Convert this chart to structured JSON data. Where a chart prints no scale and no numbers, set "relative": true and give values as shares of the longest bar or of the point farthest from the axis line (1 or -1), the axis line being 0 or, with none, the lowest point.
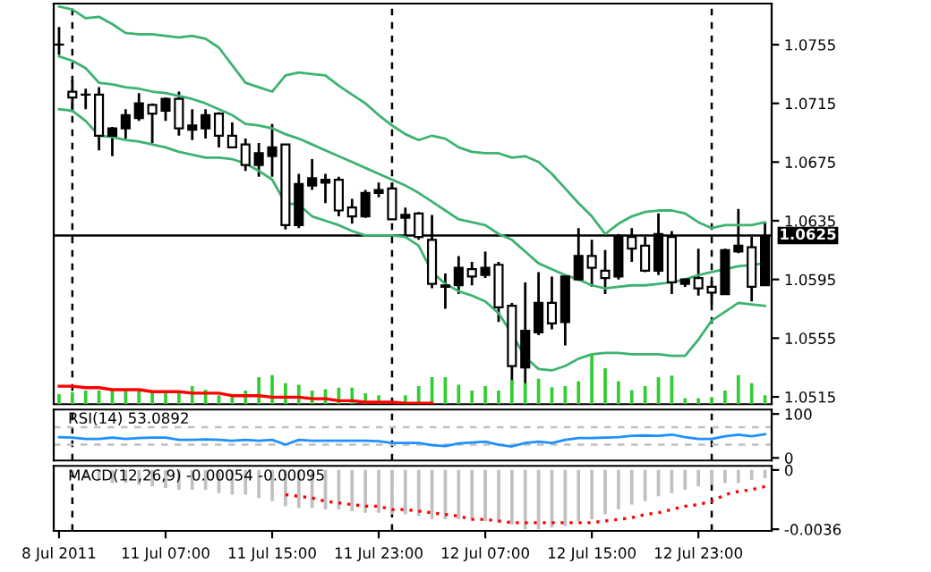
{
  "chart_data": [
    {
      "type": "candlestick",
      "categories": [
        null,
        null,
        null,
        null,
        null,
        null,
        null,
        null,
        null,
        null,
        null,
        null,
        null,
        null,
        null,
        null,
        null,
        null,
        null,
        null,
        null,
        null,
        null,
        null,
        null,
        null,
        null,
        null,
        null,
        null,
        null,
        null,
        null,
        null,
        null,
        null,
        null,
        null,
        null,
        null,
        null,
        null,
        null,
        null,
        null,
        null,
        null,
        null,
        null,
        null,
        null,
        null,
        null,
        null
      ],
      "ohlc": [
        [
          1.0755,
          1.0767,
          1.0748,
          1.0755
        ],
        [
          1.0719,
          1.0731,
          1.0709,
          1.0723
        ],
        [
          1.0721,
          1.0725,
          1.0711,
          1.0721
        ],
        [
          1.0693,
          1.0726,
          1.0683,
          1.0721
        ],
        [
          1.0698,
          1.0699,
          1.0679,
          1.0693
        ],
        [
          1.0707,
          1.0711,
          1.0691,
          1.0698
        ],
        [
          1.0715,
          1.0722,
          1.0703,
          1.0705
        ],
        [
          1.0708,
          1.0715,
          1.0688,
          1.0714
        ],
        [
          1.0718,
          1.0719,
          1.0703,
          1.071
        ],
        [
          1.0698,
          1.0723,
          1.0693,
          1.0718
        ],
        [
          1.07,
          1.0711,
          1.069,
          1.0697
        ],
        [
          1.0707,
          1.0711,
          1.0691,
          1.0698
        ],
        [
          1.0693,
          1.0709,
          1.0685,
          1.0708
        ],
        [
          1.0685,
          1.0702,
          1.0685,
          1.0693
        ],
        [
          1.0673,
          1.0691,
          1.0669,
          1.0687
        ],
        [
          1.0681,
          1.0688,
          1.0665,
          1.0673
        ],
        [
          1.0685,
          1.0701,
          1.0665,
          1.0679
        ],
        [
          1.0632,
          1.0687,
          1.0629,
          1.0687
        ],
        [
          1.066,
          1.0667,
          1.063,
          1.0632
        ],
        [
          1.0664,
          1.0677,
          1.0656,
          1.0659
        ],
        [
          1.0663,
          1.0667,
          1.0647,
          1.0661
        ],
        [
          1.0642,
          1.0665,
          1.0638,
          1.0663
        ],
        [
          1.0638,
          1.065,
          1.0633,
          1.0644
        ],
        [
          1.0654,
          1.0656,
          1.0637,
          1.0638
        ],
        [
          1.0656,
          1.0661,
          1.0651,
          1.0654
        ],
        [
          1.0636,
          1.0661,
          1.0636,
          1.0657
        ],
        [
          1.0639,
          1.0644,
          1.0624,
          1.0637
        ],
        [
          1.0624,
          1.0641,
          1.0622,
          1.064
        ],
        [
          1.0592,
          1.0639,
          1.0589,
          1.0622
        ],
        [
          1.0591,
          1.0599,
          1.0575,
          1.059
        ],
        [
          1.0603,
          1.0611,
          1.0585,
          1.0591
        ],
        [
          1.0597,
          1.0607,
          1.0591,
          1.0602
        ],
        [
          1.0603,
          1.0614,
          1.0596,
          1.0598
        ],
        [
          1.0576,
          1.0607,
          1.0566,
          1.0605
        ],
        [
          1.0536,
          1.0579,
          1.0524,
          1.0577
        ],
        [
          1.056,
          1.0593,
          1.0523,
          1.0535
        ],
        [
          1.0579,
          1.06,
          1.0557,
          1.0559
        ],
        [
          1.0565,
          1.0597,
          1.0561,
          1.0579
        ],
        [
          1.0597,
          1.0598,
          1.055,
          1.0566
        ],
        [
          1.0611,
          1.063,
          1.0594,
          1.0595
        ],
        [
          1.0603,
          1.0622,
          1.059,
          1.0611
        ],
        [
          1.0596,
          1.0615,
          1.0585,
          1.0601
        ],
        [
          1.0624,
          1.0626,
          1.0595,
          1.0597
        ],
        [
          1.0616,
          1.063,
          1.0607,
          1.0624
        ],
        [
          1.0601,
          1.0624,
          1.06,
          1.0618
        ],
        [
          1.0626,
          1.064,
          1.0598,
          1.0601
        ],
        [
          1.0593,
          1.0628,
          1.0585,
          1.0624
        ],
        [
          1.0595,
          1.0596,
          1.059,
          1.0592
        ],
        [
          1.0589,
          1.0616,
          1.0584,
          1.0596
        ],
        [
          1.0586,
          1.0594,
          1.0578,
          1.059
        ],
        [
          1.0615,
          1.0616,
          1.0585,
          1.0585
        ],
        [
          1.0618,
          1.0643,
          1.0613,
          1.0614
        ],
        [
          1.059,
          1.0624,
          1.058,
          1.0617
        ],
        [
          1.0624,
          1.0634,
          1.0591,
          1.0591
        ]
      ],
      "series": [
        {
          "type": "line",
          "color": "#3cb371",
          "values": [
            1.0781,
            1.0779,
            1.0773,
            1.0774,
            1.0769,
            1.0763,
            1.0762,
            1.0762,
            1.0761,
            1.076,
            1.0761,
            1.0759,
            1.0753,
            1.0741,
            1.0729,
            1.0726,
            1.0723,
            1.0734,
            1.0736,
            1.0735,
            1.0734,
            1.0727,
            1.0721,
            1.0715,
            1.0707,
            1.07,
            1.0694,
            1.069,
            1.0693,
            1.0691,
            1.0685,
            1.0682,
            1.0681,
            1.0681,
            1.0678,
            1.0679,
            1.0675,
            1.0667,
            1.0657,
            1.0647,
            1.0638,
            1.0626,
            1.0633,
            1.0638,
            1.0641,
            1.0642,
            1.0642,
            1.064,
            1.0634,
            1.063,
            1.0632,
            1.0632,
            1.0632,
            1.0634
          ]
        },
        {
          "type": "line",
          "color": "#3cb371",
          "values": [
            1.0747,
            1.0744,
            1.0739,
            1.0729,
            1.0728,
            1.0726,
            1.0725,
            1.0723,
            1.0722,
            1.072,
            1.0718,
            1.0715,
            1.0711,
            1.0707,
            1.0701,
            1.07,
            1.0698,
            1.0694,
            1.0691,
            1.0687,
            1.0683,
            1.0679,
            1.0675,
            1.0671,
            1.0667,
            1.0663,
            1.0659,
            1.0654,
            1.0648,
            1.0642,
            1.0636,
            1.0634,
            1.0632,
            1.0626,
            1.0622,
            1.0614,
            1.0606,
            1.0602,
            1.0598,
            1.0595,
            1.0591,
            1.0589,
            1.059,
            1.0591,
            1.0591,
            1.0592,
            1.0593,
            1.0595,
            1.0598,
            1.06,
            1.0602,
            1.0604,
            1.0605,
            1.0606
          ]
        },
        {
          "type": "line",
          "color": "#3cb371",
          "values": [
            1.0711,
            1.071,
            1.0703,
            1.0693,
            1.0692,
            1.069,
            1.0689,
            1.0687,
            1.0685,
            1.0682,
            1.068,
            1.0678,
            1.0678,
            1.0677,
            1.0674,
            1.0669,
            1.0663,
            1.0647,
            1.0646,
            1.0638,
            1.0635,
            1.0632,
            1.0628,
            1.0625,
            1.0625,
            1.0625,
            1.0624,
            1.0618,
            1.06,
            1.0592,
            1.0587,
            1.0584,
            1.058,
            1.0572,
            1.0558,
            1.0542,
            1.0534,
            1.0533,
            1.0536,
            1.0541,
            1.0544,
            1.0545,
            1.0545,
            1.0544,
            1.0544,
            1.0544,
            1.0543,
            1.0543,
            1.0554,
            1.0567,
            1.0573,
            1.0579,
            1.0578,
            1.0577
          ]
        }
      ],
      "ylim": [
        1.051,
        1.0783
      ],
      "yticks": [
        1.0755,
        1.0715,
        1.0675,
        1.0635,
        1.0595,
        1.0555,
        1.0515
      ],
      "tick_labels": "y",
      "grid": "x",
      "ref_lines": [
        {
          "axis": "y",
          "value": 1.0625,
          "label": "1.0625",
          "color": "#000000",
          "line_style": "solid"
        }
      ]
    },
    {
      "type": "bar",
      "relative": true,
      "categories": [
        null,
        null,
        null,
        null,
        null,
        null,
        null,
        null,
        null,
        null,
        null,
        null,
        null,
        null,
        null,
        null,
        null,
        null,
        null,
        null,
        null,
        null,
        null,
        null,
        null,
        null,
        null,
        null,
        null,
        null,
        null,
        null,
        null,
        null,
        null,
        null,
        null,
        null,
        null,
        null,
        null,
        null,
        null,
        null,
        null,
        null,
        null,
        null,
        null,
        null,
        null,
        null,
        null,
        null
      ],
      "series": [
        {
          "color": "#32cd32",
          "values": [
            0.2,
            0.24,
            0.27,
            0.27,
            0.27,
            0.27,
            0.27,
            0.24,
            0.24,
            0.24,
            0.36,
            0.29,
            0.18,
            0.18,
            0.27,
            0.54,
            0.58,
            0.42,
            0.39,
            0.27,
            0.3,
            0.33,
            0.33,
            0.22,
            0.18,
            null,
            0.18,
            0.36,
            0.54,
            0.54,
            0.39,
            0.27,
            0.36,
            0.27,
            0.48,
            0.42,
            0.51,
            0.34,
            0.36,
            0.46,
            1,
            0.72,
            0.46,
            0.28,
            0.36,
            0.54,
            0.57,
            0.12,
            0.12,
            0.14,
            0.27,
            0.58,
            0.42,
            0.18
          ]
        },
        {
          "type": "line",
          "color": "#ff0000",
          "values": [
            0.36,
            0.36,
            0.33,
            0.33,
            0.29,
            0.29,
            0.29,
            0.25,
            0.25,
            0.25,
            0.22,
            0.22,
            0.22,
            0.17,
            0.17,
            0.17,
            0.14,
            0.14,
            0.14,
            0.11,
            0.11,
            0.07,
            0.07,
            0.04,
            0.04,
            0.04,
            0.02,
            0.02,
            0.02,
            null,
            null,
            null,
            null,
            null,
            null,
            null,
            null,
            null,
            null,
            null,
            null,
            null,
            null,
            null,
            null,
            null,
            null,
            null,
            null,
            null,
            null,
            null,
            null,
            null
          ]
        }
      ]
    },
    {
      "type": "line",
      "title": "RSI(14) 53.0892",
      "categories": [
        null,
        null,
        null,
        null,
        null,
        null,
        null,
        null,
        null,
        null,
        null,
        null,
        null,
        null,
        null,
        null,
        null,
        null,
        null,
        null,
        null,
        null,
        null,
        null,
        null,
        null,
        null,
        null,
        null,
        null,
        null,
        null,
        null,
        null,
        null,
        null,
        null,
        null,
        null,
        null,
        null,
        null,
        null,
        null,
        null,
        null,
        null,
        null,
        null,
        null,
        null,
        null,
        null,
        null
      ],
      "series": [
        {
          "color": "#1e90ff",
          "values": [
            47,
            46,
            43,
            43,
            46,
            43,
            45,
            46,
            46,
            41,
            41,
            42,
            41,
            39,
            41,
            39,
            41,
            30,
            41,
            39,
            39,
            39,
            39,
            39,
            38,
            34,
            34,
            34,
            29,
            27,
            33,
            35,
            37,
            30,
            26,
            34,
            37,
            34,
            41,
            45,
            45,
            46,
            47,
            50,
            51,
            50,
            53,
            47,
            43,
            43,
            49,
            53,
            49,
            54
          ]
        }
      ],
      "ylim": [
        -6,
        110
      ],
      "yticks": [
        100,
        0
      ],
      "tick_labels": "y",
      "grid": "x",
      "ref_lines": [
        {
          "axis": "y",
          "value": 70,
          "color": "#c0c0c0",
          "line_style": "dashed"
        },
        {
          "axis": "y",
          "value": 30,
          "color": "#c0c0c0",
          "line_style": "dashed"
        }
      ]
    },
    {
      "type": "bar",
      "title": "MACD(12,26,9) -0.00054 -0.00095",
      "categories": [
        "8 Jul 2011",
        null,
        null,
        null,
        null,
        null,
        null,
        null,
        "11 Jul 07:00",
        null,
        null,
        null,
        null,
        null,
        null,
        null,
        "11 Jul 15:00",
        null,
        null,
        null,
        null,
        null,
        null,
        null,
        "11 Jul 23:00",
        null,
        null,
        null,
        null,
        null,
        null,
        null,
        "12 Jul 07:00",
        null,
        null,
        null,
        null,
        null,
        null,
        null,
        "12 Jul 15:00",
        null,
        null,
        null,
        null,
        null,
        null,
        null,
        "12 Jul 23:00",
        null,
        null,
        null,
        null,
        null
      ],
      "series": [
        {
          "color": "#c0c0c0",
          "values": [
            null,
            -0.0003,
            -0.0005,
            -0.0006,
            -0.0008,
            -0.0008,
            -0.0009,
            -0.001,
            -0.0011,
            -0.0012,
            -0.0012,
            -0.0012,
            -0.0014,
            -0.0015,
            -0.0015,
            -0.0017,
            -0.0019,
            -0.0022,
            -0.0023,
            -0.0023,
            -0.0024,
            -0.0024,
            -0.0025,
            -0.0026,
            -0.0026,
            -0.0027,
            -0.0027,
            -0.0028,
            -0.003,
            -0.003,
            -0.003,
            -0.003,
            -0.0031,
            -0.0032,
            -0.0033,
            -0.0036,
            -0.0036,
            -0.0035,
            -0.0034,
            -0.0031,
            -0.003,
            -0.0027,
            -0.0024,
            -0.0021,
            -0.0019,
            -0.0016,
            -0.0014,
            -0.0012,
            -0.001,
            -0.0009,
            -0.0008,
            -0.0008,
            -0.0006,
            -0.0005
          ]
        },
        {
          "type": "line",
          "line_style": "dotted",
          "color": "#ff0000",
          "values": [
            null,
            null,
            null,
            null,
            null,
            null,
            null,
            null,
            null,
            null,
            null,
            null,
            null,
            null,
            null,
            null,
            null,
            -0.0015,
            -0.0016,
            -0.0017,
            -0.0019,
            -0.002,
            -0.0021,
            -0.0022,
            -0.0022,
            -0.0024,
            -0.0024,
            -0.0025,
            -0.0026,
            -0.0027,
            -0.0028,
            -0.003,
            -0.003,
            -0.0031,
            -0.0032,
            -0.0032,
            -0.0032,
            -0.0032,
            -0.0032,
            -0.0032,
            -0.0032,
            -0.0031,
            -0.003,
            -0.0029,
            -0.0027,
            -0.0026,
            -0.0024,
            -0.0022,
            -0.0021,
            -0.0019,
            -0.0015,
            -0.0013,
            -0.0012,
            -0.001
          ]
        }
      ],
      "ylim": [
        -0.0037,
        0.00025
      ],
      "yticks": [
        0,
        {
          "value": -0.0036,
          "label": "-0.0036"
        }
      ],
      "grid": "x"
    }
  ]
}
